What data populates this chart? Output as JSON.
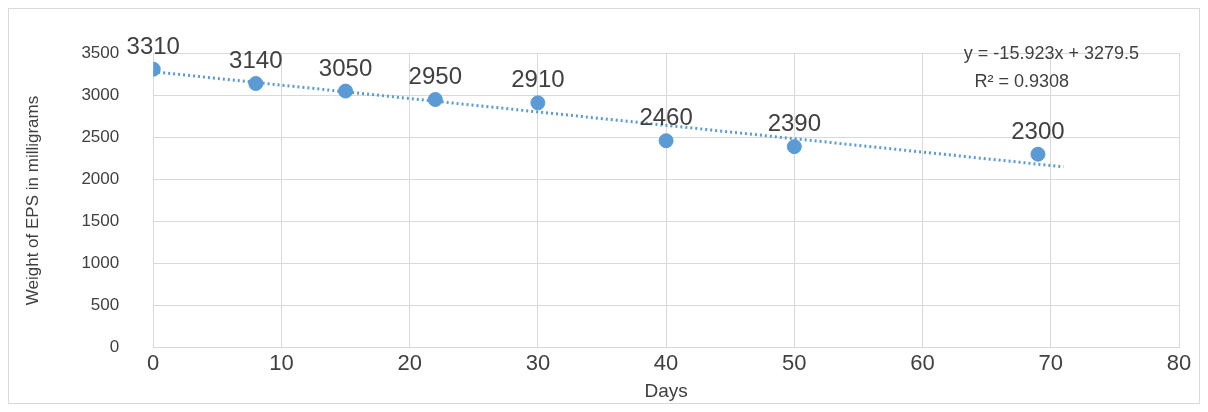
{
  "chart_data": {
    "type": "scatter",
    "xlabel": "Days",
    "ylabel": "Weight of EPS in milligrams",
    "xlim": [
      0,
      80
    ],
    "xticks": [
      0,
      10,
      20,
      30,
      40,
      50,
      60,
      70,
      80
    ],
    "ylim": [
      0,
      3500
    ],
    "yticks": [
      0,
      500,
      1000,
      1500,
      2000,
      2500,
      3000,
      3500
    ],
    "grid": true,
    "legend": false,
    "series": [
      {
        "color": "#5b9bd5",
        "marker": "circle",
        "x": [
          0,
          8,
          15,
          22,
          30,
          40,
          50,
          69
        ],
        "values": [
          3310,
          3140,
          3050,
          2950,
          2910,
          2460,
          2390,
          2300
        ],
        "value_labels": [
          "3310",
          "3140",
          "3050",
          "2950",
          "2910",
          "2460",
          "2390",
          "2300"
        ]
      },
      {
        "type": "line",
        "marker": "none",
        "line_style": "dotted",
        "color": "#5b9bd5",
        "x": [
          0,
          71
        ],
        "values": [
          3280,
          2150
        ]
      }
    ],
    "annotations": [
      "y = -15.923x + 3279.5",
      "R² = 0.9308"
    ]
  }
}
